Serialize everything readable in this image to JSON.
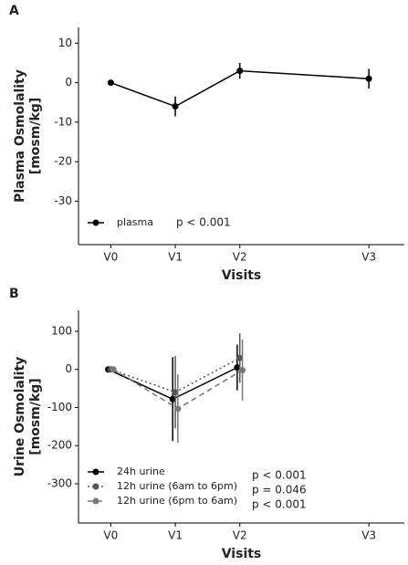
{
  "chart_data": [
    {
      "type": "line",
      "label": "A",
      "xlabel": "Visits",
      "ylabel": [
        "Plasma Osmolality",
        "[mosm/kg]"
      ],
      "xlim": [
        -0.5,
        4.55
      ],
      "xticks": [
        {
          "value": 0,
          "label": "V0"
        },
        {
          "value": 1,
          "label": "V1"
        },
        {
          "value": 2,
          "label": "V2"
        },
        {
          "value": 4,
          "label": "V3"
        }
      ],
      "ylim": [
        -41,
        14
      ],
      "yticks": [
        -30,
        -20,
        -10,
        0,
        10
      ],
      "legend": "lower left",
      "series": [
        {
          "name": "plasma",
          "color": "#000000",
          "linestyle": "solid",
          "x": [
            0,
            1,
            2,
            4
          ],
          "values": [
            0,
            -6,
            3,
            1
          ],
          "errors": [
            0.5,
            2.5,
            2,
            2.5
          ],
          "annotation": "p < 0.001"
        }
      ]
    },
    {
      "type": "line",
      "label": "B",
      "xlabel": "Visits",
      "ylabel": [
        "Urine Osmolality",
        "[mosm/kg]"
      ],
      "xlim": [
        -0.5,
        4.55
      ],
      "xticks": [
        {
          "value": 0,
          "label": "V0"
        },
        {
          "value": 1,
          "label": "V1"
        },
        {
          "value": 2,
          "label": "V2"
        },
        {
          "value": 4,
          "label": "V3"
        }
      ],
      "ylim": [
        -403,
        155
      ],
      "yticks": [
        -300,
        -200,
        -100,
        0,
        100
      ],
      "legend": "lower left",
      "series": [
        {
          "name": "24h urine",
          "color": "#000000",
          "linestyle": "solid",
          "x": [
            -0.04,
            0.96,
            1.96
          ],
          "values": [
            0,
            -78,
            5
          ],
          "errors": [
            3,
            110,
            60
          ],
          "annotation": "p < 0.001"
        },
        {
          "name": "12h urine (6am to 6pm)",
          "color": "#555555",
          "linestyle": "dotted",
          "x": [
            0,
            1,
            2
          ],
          "values": [
            0,
            -60,
            30
          ],
          "errors": [
            3,
            95,
            65
          ],
          "annotation": "p = 0.046"
        },
        {
          "name": "12h urine (6pm to 6am)",
          "color": "#777777",
          "linestyle": "dashed",
          "x": [
            0.04,
            1.04,
            2.04
          ],
          "values": [
            0,
            -103,
            -2
          ],
          "errors": [
            3,
            90,
            80
          ],
          "annotation": "p < 0.001"
        }
      ]
    }
  ]
}
